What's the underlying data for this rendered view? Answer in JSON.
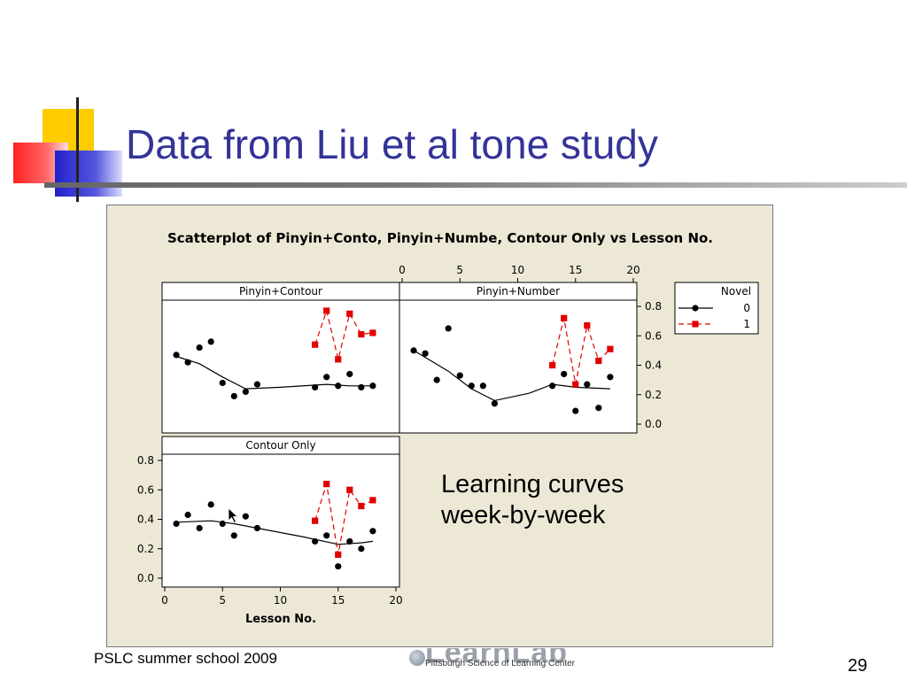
{
  "slide": {
    "title": "Data from Liu et al tone study",
    "caption_lines": [
      "Learning curves",
      "week-by-week"
    ],
    "footer": "PSLC summer school 2009",
    "page_number": "29",
    "logo": {
      "word": "LearnLab",
      "tagline": "Pittsburgh Science of Learning Center"
    }
  },
  "colors": {
    "title": "#333399",
    "chart_background": "#ede8d6",
    "novel0": "#000000",
    "novel1": "#e00000",
    "deco_yellow": "#ffcc00",
    "deco_red": "#ff3333",
    "deco_blue": "#3333cc"
  },
  "chart_data": {
    "type": "scatter",
    "title": "Scatterplot of Pinyin+Conto, Pinyin+Numbe, Contour Only vs Lesson No.",
    "xlabel": "Lesson No.",
    "xlim": [
      0,
      20
    ],
    "ylim": [
      0.0,
      0.8
    ],
    "xticks": [
      "0",
      "5",
      "10",
      "15",
      "20"
    ],
    "yticks": [
      "0.0",
      "0.2",
      "0.4",
      "0.6",
      "0.8"
    ],
    "legend": {
      "title": "Novel",
      "entries": [
        "0",
        "1"
      ],
      "position": "right"
    },
    "panels": [
      {
        "name": "Pinyin+Contour",
        "novel0": [
          [
            1,
            0.47
          ],
          [
            2,
            0.42
          ],
          [
            3,
            0.52
          ],
          [
            4,
            0.56
          ],
          [
            5,
            0.28
          ],
          [
            6,
            0.19
          ],
          [
            7,
            0.22
          ],
          [
            8,
            0.27
          ],
          [
            13,
            0.25
          ],
          [
            14,
            0.32
          ],
          [
            15,
            0.26
          ],
          [
            16,
            0.34
          ],
          [
            17,
            0.25
          ],
          [
            18,
            0.26
          ]
        ],
        "novel0_smooth": [
          [
            1,
            0.46
          ],
          [
            3,
            0.41
          ],
          [
            5,
            0.32
          ],
          [
            7,
            0.24
          ],
          [
            10,
            0.25
          ],
          [
            14,
            0.27
          ],
          [
            16,
            0.26
          ],
          [
            18,
            0.26
          ]
        ],
        "novel1": [
          [
            13,
            0.54
          ],
          [
            14,
            0.77
          ],
          [
            15,
            0.44
          ],
          [
            16,
            0.75
          ],
          [
            17,
            0.61
          ],
          [
            18,
            0.62
          ]
        ]
      },
      {
        "name": "Pinyin+Number",
        "novel0": [
          [
            1,
            0.5
          ],
          [
            2,
            0.48
          ],
          [
            3,
            0.3
          ],
          [
            4,
            0.65
          ],
          [
            5,
            0.33
          ],
          [
            6,
            0.26
          ],
          [
            7,
            0.26
          ],
          [
            8,
            0.14
          ],
          [
            13,
            0.26
          ],
          [
            14,
            0.34
          ],
          [
            15,
            0.09
          ],
          [
            16,
            0.27
          ],
          [
            17,
            0.11
          ],
          [
            18,
            0.32
          ]
        ],
        "novel0_smooth": [
          [
            1,
            0.5
          ],
          [
            4,
            0.36
          ],
          [
            6,
            0.24
          ],
          [
            8,
            0.16
          ],
          [
            11,
            0.21
          ],
          [
            13,
            0.27
          ],
          [
            15,
            0.25
          ],
          [
            18,
            0.24
          ]
        ],
        "novel1": [
          [
            13,
            0.4
          ],
          [
            14,
            0.72
          ],
          [
            15,
            0.27
          ],
          [
            16,
            0.67
          ],
          [
            17,
            0.43
          ],
          [
            18,
            0.51
          ]
        ]
      },
      {
        "name": "Contour Only",
        "novel0": [
          [
            1,
            0.37
          ],
          [
            2,
            0.43
          ],
          [
            3,
            0.34
          ],
          [
            4,
            0.5
          ],
          [
            5,
            0.37
          ],
          [
            6,
            0.29
          ],
          [
            7,
            0.42
          ],
          [
            8,
            0.34
          ],
          [
            13,
            0.25
          ],
          [
            14,
            0.29
          ],
          [
            15,
            0.08
          ],
          [
            16,
            0.25
          ],
          [
            17,
            0.2
          ],
          [
            18,
            0.32
          ]
        ],
        "novel0_smooth": [
          [
            1,
            0.38
          ],
          [
            4,
            0.39
          ],
          [
            6,
            0.37
          ],
          [
            8,
            0.34
          ],
          [
            12,
            0.28
          ],
          [
            15,
            0.23
          ],
          [
            17,
            0.24
          ],
          [
            18,
            0.25
          ]
        ],
        "novel1": [
          [
            13,
            0.39
          ],
          [
            14,
            0.64
          ],
          [
            15,
            0.16
          ],
          [
            16,
            0.6
          ],
          [
            17,
            0.49
          ],
          [
            18,
            0.53
          ]
        ]
      }
    ]
  }
}
